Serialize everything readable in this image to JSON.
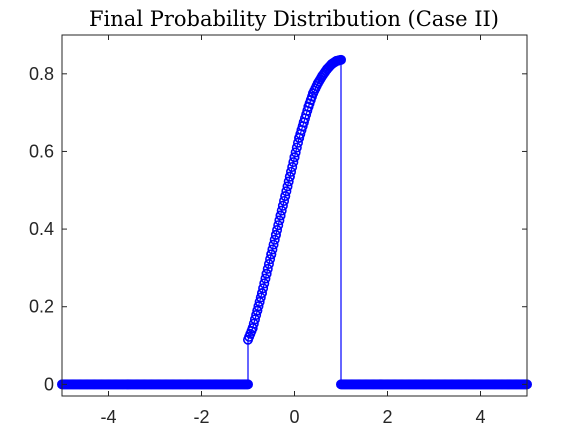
{
  "chart_data": {
    "type": "line",
    "title": "Final Probability Distribution (Case II)",
    "xlabel": "",
    "ylabel": "",
    "xlim": [
      -5,
      5
    ],
    "ylim": [
      -0.03,
      0.9
    ],
    "xticks": [
      -4,
      -2,
      0,
      2,
      4
    ],
    "xtick_labels": [
      "-4",
      "-2",
      "0",
      "2",
      "4"
    ],
    "yticks": [
      0,
      0.2,
      0.4,
      0.6,
      0.8
    ],
    "ytick_labels": [
      "0",
      "0.2",
      "0.4",
      "0.6",
      "0.8"
    ],
    "grid": false,
    "legend": "none",
    "series": [
      {
        "color": "#0000ff",
        "marker": "circle",
        "x": [
          -5,
          -1,
          -1,
          -0.9,
          -0.8,
          -0.7,
          -0.6,
          -0.5,
          -0.4,
          -0.3,
          -0.2,
          -0.1,
          0,
          0.1,
          0.2,
          0.3,
          0.4,
          0.5,
          0.6,
          0.7,
          0.8,
          0.9,
          1,
          1,
          5
        ],
        "y": [
          0,
          0,
          0.115,
          0.145,
          0.19,
          0.235,
          0.285,
          0.335,
          0.385,
          0.435,
          0.485,
          0.535,
          0.585,
          0.635,
          0.675,
          0.715,
          0.75,
          0.775,
          0.795,
          0.812,
          0.825,
          0.833,
          0.836,
          0,
          0
        ]
      }
    ]
  }
}
